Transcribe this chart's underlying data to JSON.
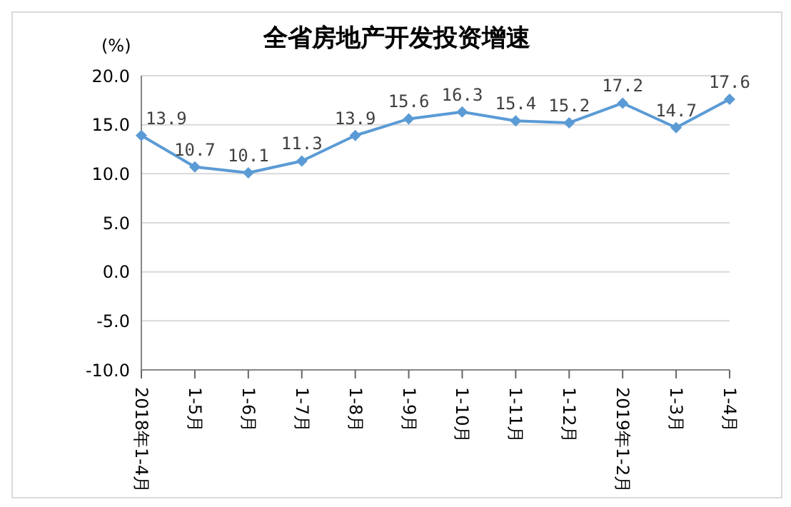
{
  "chart_data": {
    "type": "line",
    "title": "全省房地产开发投资增速",
    "ylabel": "(%)",
    "categories": [
      "2018年1-4月",
      "1-5月",
      "1-6月",
      "1-7月",
      "1-8月",
      "1-9月",
      "1-10月",
      "1-11月",
      "1-12月",
      "2019年1-2月",
      "1-3月",
      "1-4月"
    ],
    "series": [
      {
        "color": "#5b9bd5",
        "values": [
          13.9,
          10.7,
          10.1,
          11.3,
          13.9,
          15.6,
          16.3,
          15.4,
          15.2,
          17.2,
          14.7,
          17.6
        ]
      }
    ],
    "ylim": [
      -10,
      20
    ],
    "yticks": [
      {
        "value": -10,
        "label": "-10.0"
      },
      {
        "value": -5,
        "label": "-5.0"
      },
      {
        "value": 0,
        "label": "0.0"
      },
      {
        "value": 5,
        "label": "5.0"
      },
      {
        "value": 10,
        "label": "10.0"
      },
      {
        "value": 15,
        "label": "15.0"
      },
      {
        "value": 20,
        "label": "20.0"
      }
    ],
    "grid": "y",
    "marker": "diamond",
    "line_style": "solid",
    "data_labels": true
  }
}
